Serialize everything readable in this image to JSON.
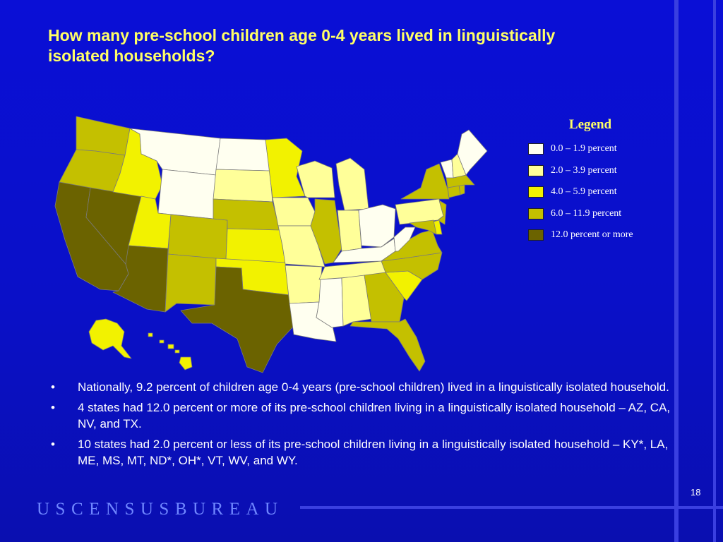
{
  "slide": {
    "title": "How many pre-school children age 0-4 years lived in linguistically isolated households?",
    "page_number": "18",
    "logo_text": "USCENSUSBUREAU"
  },
  "legend": {
    "title": "Legend",
    "items": [
      {
        "label": "0.0 – 1.9 percent",
        "color": "#fffff0"
      },
      {
        "label": "2.0 – 3.9 percent",
        "color": "#ffff99"
      },
      {
        "label": "4.0 – 5.9 percent",
        "color": "#f2f200"
      },
      {
        "label": "6.0 – 11.9 percent",
        "color": "#c4c000"
      },
      {
        "label": "12.0 percent or more",
        "color": "#6b6300"
      }
    ]
  },
  "map": {
    "states": {
      "WA": "6.0 – 11.9 percent",
      "OR": "6.0 – 11.9 percent",
      "CA": "12.0 percent or more",
      "NV": "12.0 percent or more",
      "ID": "4.0 – 5.9 percent",
      "MT": "0.0 – 1.9 percent",
      "WY": "0.0 – 1.9 percent",
      "UT": "4.0 – 5.9 percent",
      "AZ": "12.0 percent or more",
      "CO": "6.0 – 11.9 percent",
      "NM": "6.0 – 11.9 percent",
      "ND": "0.0 – 1.9 percent",
      "SD": "2.0 – 3.9 percent",
      "NE": "6.0 – 11.9 percent",
      "KS": "4.0 – 5.9 percent",
      "OK": "4.0 – 5.9 percent",
      "TX": "12.0 percent or more",
      "MN": "4.0 – 5.9 percent",
      "IA": "2.0 – 3.9 percent",
      "MO": "2.0 – 3.9 percent",
      "AR": "2.0 – 3.9 percent",
      "LA": "0.0 – 1.9 percent",
      "WI": "2.0 – 3.9 percent",
      "IL": "6.0 – 11.9 percent",
      "MI": "2.0 – 3.9 percent",
      "IN": "2.0 – 3.9 percent",
      "OH": "0.0 – 1.9 percent",
      "KY": "0.0 – 1.9 percent",
      "TN": "2.0 – 3.9 percent",
      "MS": "0.0 – 1.9 percent",
      "AL": "2.0 – 3.9 percent",
      "GA": "6.0 – 11.9 percent",
      "FL": "6.0 – 11.9 percent",
      "SC": "4.0 – 5.9 percent",
      "NC": "6.0 – 11.9 percent",
      "VA": "6.0 – 11.9 percent",
      "WV": "0.0 – 1.9 percent",
      "PA": "2.0 – 3.9 percent",
      "NY": "6.0 – 11.9 percent",
      "NJ": "6.0 – 11.9 percent",
      "DE": "4.0 – 5.9 percent",
      "MD": "6.0 – 11.9 percent",
      "CT": "6.0 – 11.9 percent",
      "RI": "6.0 – 11.9 percent",
      "MA": "6.0 – 11.9 percent",
      "VT": "0.0 – 1.9 percent",
      "NH": "2.0 – 3.9 percent",
      "ME": "0.0 – 1.9 percent",
      "AK": "4.0 – 5.9 percent",
      "HI": "4.0 – 5.9 percent"
    }
  },
  "bullets": [
    {
      "mark": "•",
      "text": "Nationally, 9.2 percent of children age 0-4 years (pre-school children) lived in a linguistically isolated household."
    },
    {
      "mark": "•",
      "text": "4 states had 12.0 percent or more of its pre-school children living in a linguistically isolated household – AZ, CA, NV, and TX."
    },
    {
      "mark": "•",
      "text": "10 states had 2.0 percent or less of its pre-school children living in a linguistically isolated household – KY*, LA, ME, MS, MT, ND*, OH*, VT, WV, and WY."
    }
  ]
}
